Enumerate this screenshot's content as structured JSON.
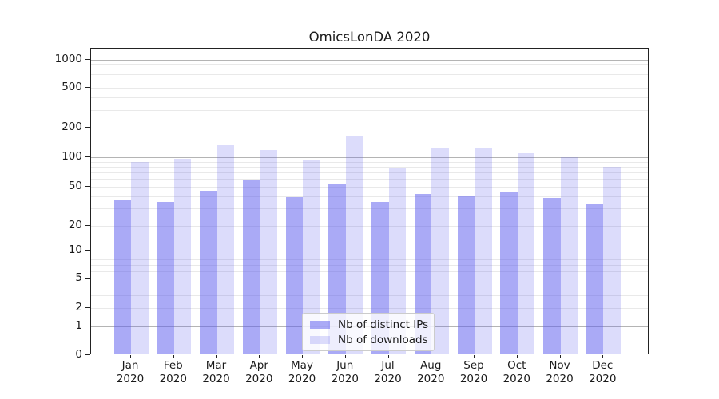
{
  "chart_data": {
    "type": "bar",
    "title": "OmicsLonDA 2020",
    "x_axis": {
      "months": [
        "Jan",
        "Feb",
        "Mar",
        "Apr",
        "May",
        "Jun",
        "Jul",
        "Aug",
        "Sep",
        "Oct",
        "Nov",
        "Dec"
      ],
      "year": "2020",
      "categories": [
        "Jan 2020",
        "Feb 2020",
        "Mar 2020",
        "Apr 2020",
        "May 2020",
        "Jun 2020",
        "Jul 2020",
        "Aug 2020",
        "Sep 2020",
        "Oct 2020",
        "Nov 2020",
        "Dec 2020"
      ]
    },
    "y_axis": {
      "scale": "log",
      "range": [
        0,
        1000
      ],
      "tick_labels": [
        "0",
        "1",
        "2",
        "5",
        "10",
        "20",
        "50",
        "100",
        "200",
        "500",
        "1000"
      ]
    },
    "grid": true,
    "legend_position": "lower center",
    "series": [
      {
        "name": "Nb of distinct IPs",
        "color": "rgba(92,92,237,0.52)",
        "values": [
          35,
          34,
          44,
          57,
          38,
          51,
          34,
          41,
          39,
          42,
          37,
          32
        ]
      },
      {
        "name": "Nb of downloads",
        "color": "rgba(92,92,237,0.21)",
        "values": [
          86,
          93,
          128,
          114,
          90,
          158,
          75,
          118,
          118,
          105,
          97,
          77
        ]
      }
    ]
  }
}
